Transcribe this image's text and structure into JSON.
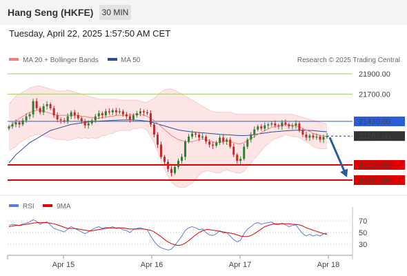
{
  "header": {
    "title": "Hang Seng (HKFE)",
    "interval": "30 MIN",
    "datetime": "Tuesday, April 22, 2025 1:57:50 AM CET"
  },
  "legend": {
    "ma20": "MA 20 + Bollinger Bands",
    "ma50": "MA 50",
    "credit": "Research © 2025 Trading Central",
    "rsi": "RSI",
    "rsi_ma": "9MA"
  },
  "colors": {
    "ma20": "#f08080",
    "ma50": "#2a4d9a",
    "bands_fill": "#fde0e0",
    "resistance_far": "#9acd6a",
    "pivot": "#2a5cd6",
    "support": "#e00000",
    "arrow": "#2a5aa0",
    "candle_up": "#2e7d32",
    "candle_down": "#c62828",
    "rsi": "#5b7fd6",
    "rsi_ma": "#e00000",
    "last_price_tag": "#333333"
  },
  "chart_data": [
    {
      "type": "line",
      "x_ticks": [
        "Apr 15",
        "Apr 16",
        "Apr 17",
        "Apr 18"
      ],
      "y_ticks": [
        21900,
        21700,
        21430,
        21285,
        21000,
        20850
      ],
      "levels": [
        {
          "value": 21900,
          "label": "21900.00",
          "kind": "resistance"
        },
        {
          "value": 21700,
          "label": "21700.00",
          "kind": "resistance"
        },
        {
          "value": 21430,
          "label": "21430.00",
          "kind": "pivot"
        },
        {
          "value": 21000,
          "label": "21000.00",
          "kind": "support"
        },
        {
          "value": 20850,
          "label": "20850.00",
          "kind": "support"
        }
      ],
      "last_price": {
        "value": 21285,
        "label": "21285.00"
      },
      "close": [
        21380,
        21400,
        21420,
        21400,
        21440,
        21480,
        21500,
        21630,
        21560,
        21520,
        21580,
        21600,
        21560,
        21490,
        21450,
        21440,
        21430,
        21480,
        21520,
        21490,
        21460,
        21430,
        21390,
        21410,
        21440,
        21480,
        21510,
        21490,
        21530,
        21520,
        21540,
        21520,
        21530,
        21500,
        21480,
        21450,
        21490,
        21510,
        21530,
        21520,
        21510,
        21400,
        21300,
        21200,
        21080,
        21030,
        20960,
        20920,
        20980,
        21040,
        21080,
        21230,
        21280,
        21310,
        21300,
        21270,
        21280,
        21230,
        21200,
        21190,
        21220,
        21270,
        21230,
        21250,
        21180,
        21100,
        21040,
        21060,
        21180,
        21250,
        21300,
        21350,
        21380,
        21360,
        21390,
        21400,
        21410,
        21390,
        21380,
        21420,
        21400,
        21380,
        21390,
        21410,
        21340,
        21300,
        21270,
        21290,
        21270,
        21280,
        21250,
        21275,
        21285
      ],
      "ma20": [
        21370,
        21400,
        21430,
        21460,
        21480,
        21500,
        21520,
        21530,
        21540,
        21540,
        21530,
        21520,
        21510,
        21500,
        21490,
        21490,
        21490,
        21490,
        21490,
        21490,
        21490,
        21480,
        21480,
        21470,
        21470,
        21460,
        21460,
        21470,
        21470,
        21480,
        21480,
        21490,
        21490,
        21490,
        21490,
        21490,
        21500,
        21500,
        21500,
        21490,
        21480,
        21460,
        21440,
        21410,
        21380,
        21350,
        21320,
        21290,
        21270,
        21250,
        21240,
        21230,
        21230,
        21230,
        21240,
        21250,
        21255,
        21250,
        21240,
        21230,
        21220,
        21220,
        21230,
        21235,
        21230,
        21220,
        21210,
        21210,
        21220,
        21240,
        21260,
        21280,
        21300,
        21320,
        21340,
        21355,
        21370,
        21380,
        21385,
        21390,
        21400,
        21395,
        21390,
        21385,
        21375,
        21360,
        21345,
        21330,
        21310,
        21300,
        21290,
        21285,
        21280
      ],
      "ma50": [
        21020,
        21060,
        21100,
        21130,
        21160,
        21190,
        21220,
        21240,
        21260,
        21280,
        21300,
        21320,
        21340,
        21350,
        21360,
        21370,
        21380,
        21390,
        21400,
        21405,
        21410,
        21415,
        21420,
        21425,
        21430,
        21430,
        21432,
        21434,
        21436,
        21438,
        21440,
        21442,
        21443,
        21444,
        21445,
        21445,
        21444,
        21442,
        21440,
        21436,
        21432,
        21425,
        21415,
        21405,
        21395,
        21385,
        21375,
        21365,
        21355,
        21345,
        21340,
        21335,
        21330,
        21326,
        21323,
        21320,
        21317,
        21314,
        21311,
        21308,
        21305,
        21302,
        21300,
        21298,
        21296,
        21294,
        21292,
        21290,
        21290,
        21292,
        21295,
        21300,
        21305,
        21310,
        21315,
        21320,
        21325,
        21328,
        21331,
        21334,
        21337,
        21339,
        21341,
        21342,
        21343,
        21343,
        21342,
        21341,
        21339,
        21336,
        21333,
        21330,
        21327
      ],
      "bb_upper": [
        21600,
        21640,
        21680,
        21700,
        21720,
        21740,
        21760,
        21770,
        21780,
        21780,
        21770,
        21760,
        21750,
        21740,
        21730,
        21730,
        21730,
        21740,
        21730,
        21720,
        21710,
        21700,
        21690,
        21680,
        21670,
        21660,
        21650,
        21650,
        21650,
        21650,
        21650,
        21650,
        21640,
        21640,
        21640,
        21640,
        21640,
        21640,
        21630,
        21620,
        21620,
        21640,
        21660,
        21690,
        21720,
        21740,
        21750,
        21750,
        21740,
        21720,
        21700,
        21680,
        21660,
        21640,
        21620,
        21600,
        21580,
        21560,
        21540,
        21530,
        21520,
        21520,
        21520,
        21520,
        21520,
        21510,
        21500,
        21500,
        21500,
        21500,
        21500,
        21500,
        21500,
        21500,
        21500,
        21500,
        21500,
        21500,
        21500,
        21500,
        21500,
        21500,
        21500,
        21490,
        21480,
        21470,
        21460,
        21450,
        21440,
        21430,
        21420,
        21410,
        21400
      ],
      "bb_lower": [
        21140,
        21160,
        21180,
        21220,
        21240,
        21260,
        21280,
        21290,
        21300,
        21300,
        21290,
        21280,
        21270,
        21260,
        21250,
        21250,
        21250,
        21240,
        21250,
        21260,
        21270,
        21260,
        21270,
        21260,
        21270,
        21260,
        21270,
        21290,
        21290,
        21310,
        21310,
        21330,
        21340,
        21340,
        21340,
        21340,
        21360,
        21360,
        21370,
        21360,
        21340,
        21280,
        21220,
        21130,
        21040,
        20960,
        20890,
        20830,
        20800,
        20780,
        20780,
        20780,
        20800,
        20820,
        20860,
        20900,
        20930,
        20940,
        20940,
        20930,
        20920,
        20920,
        20940,
        20950,
        20940,
        20930,
        20920,
        20920,
        20940,
        20980,
        21020,
        21060,
        21100,
        21140,
        21180,
        21210,
        21240,
        21260,
        21270,
        21280,
        21300,
        21290,
        21280,
        21280,
        21270,
        21250,
        21230,
        21210,
        21180,
        21170,
        21160,
        21160,
        21160
      ]
    },
    {
      "type": "line",
      "title": "RSI",
      "y_ticks": [
        70,
        50,
        30
      ],
      "rsi": [
        62,
        64,
        63,
        62,
        65,
        66,
        68,
        72,
        69,
        64,
        67,
        68,
        63,
        57,
        55,
        53,
        51,
        56,
        60,
        57,
        54,
        51,
        48,
        51,
        55,
        58,
        60,
        57,
        59,
        58,
        60,
        57,
        58,
        55,
        53,
        50,
        55,
        57,
        58,
        56,
        55,
        44,
        35,
        28,
        24,
        22,
        20,
        22,
        28,
        36,
        44,
        54,
        58,
        60,
        58,
        55,
        56,
        50,
        46,
        45,
        48,
        53,
        49,
        50,
        44,
        38,
        34,
        37,
        48,
        56,
        60,
        65,
        67,
        64,
        66,
        67,
        68,
        64,
        63,
        66,
        63,
        60,
        62,
        63,
        55,
        48,
        44,
        47,
        44,
        46,
        44,
        48,
        49
      ],
      "rsi_ma": [
        60,
        61,
        62,
        62,
        63,
        64,
        65,
        66,
        67,
        67,
        67,
        67,
        66,
        65,
        63,
        61,
        59,
        57,
        57,
        57,
        56,
        55,
        54,
        53,
        53,
        54,
        55,
        56,
        57,
        58,
        58,
        58,
        58,
        58,
        57,
        56,
        56,
        56,
        56,
        56,
        55,
        54,
        51,
        47,
        43,
        38,
        34,
        31,
        29,
        28,
        29,
        32,
        36,
        41,
        46,
        50,
        53,
        55,
        55,
        54,
        53,
        52,
        51,
        50,
        49,
        48,
        46,
        44,
        43,
        43,
        45,
        48,
        52,
        56,
        60,
        62,
        64,
        65,
        65,
        65,
        65,
        65,
        64,
        64,
        63,
        61,
        58,
        56,
        54,
        52,
        50,
        48,
        47
      ]
    }
  ]
}
